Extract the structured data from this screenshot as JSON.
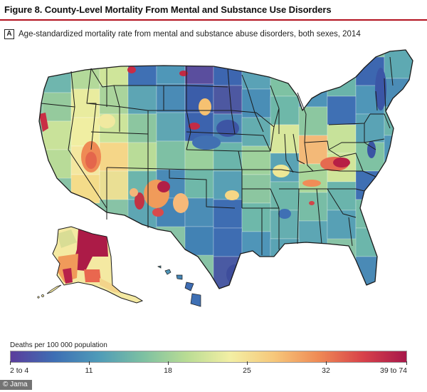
{
  "figure": {
    "title": "Figure 8. County-Level Mortality From Mental and Substance Use Disorders",
    "panel_label": "A",
    "panel_caption": "Age-standardized mortality rate from mental and substance abuse disorders, both sexes, 2014"
  },
  "legend": {
    "title": "Deaths per 100 000 population",
    "tick_labels": [
      "2 to 4",
      "11",
      "18",
      "25",
      "32",
      "39 to 74"
    ],
    "color_stops": [
      "#5b3d9c",
      "#3e6fb4",
      "#4f9bb8",
      "#7cc0a2",
      "#b9dc94",
      "#f3efa4",
      "#f6c77a",
      "#ef8a55",
      "#d8434a",
      "#a7174a"
    ]
  },
  "credit": "© Jama",
  "colors": {
    "title_rule": "#b3121f",
    "state_border": "#1a1a1a",
    "county_border": "#ffffff"
  }
}
